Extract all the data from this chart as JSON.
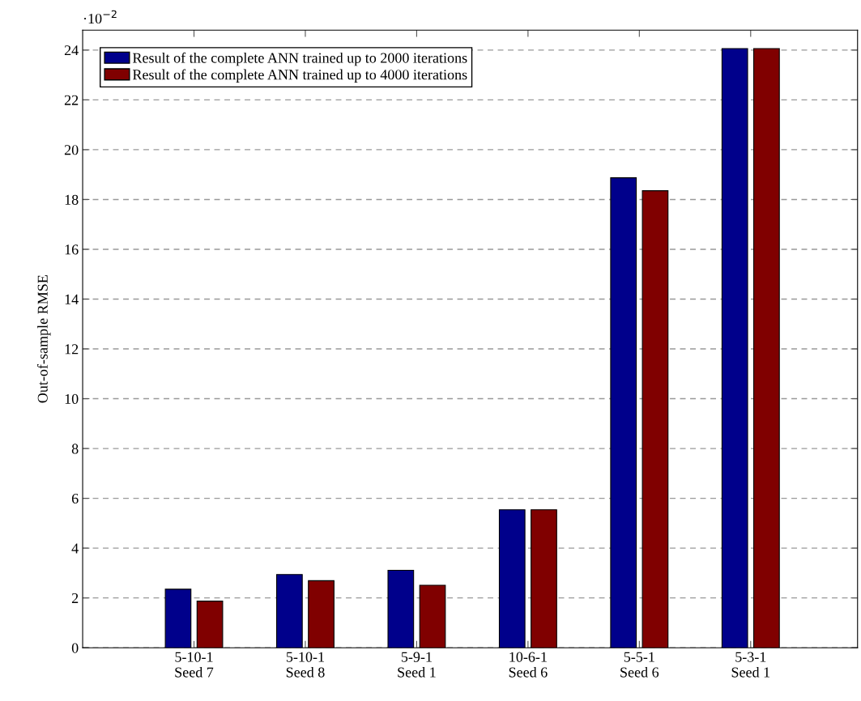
{
  "chart_data": {
    "type": "bar",
    "categories": [
      "5-10-1\nSeed 7",
      "5-10-1\nSeed 8",
      "5-9-1\nSeed 1",
      "10-6-1\nSeed 6",
      "5-5-1\nSeed 6",
      "5-3-1\nSeed 1"
    ],
    "series": [
      {
        "name": "Result of the complete ANN trained up to 2000 iterations",
        "color": "#00008b",
        "values": [
          2.35,
          2.94,
          3.11,
          5.54,
          18.87,
          24.06
        ]
      },
      {
        "name": "Result of the complete ANN trained up to 4000 iterations",
        "color": "#800000",
        "values": [
          1.87,
          2.69,
          2.51,
          5.54,
          18.35,
          24.06
        ]
      }
    ],
    "ylabel": "Out-of-sample RMSE",
    "annotations": [
      "·10$^{−2}$"
    ],
    "ylim": [
      0,
      24.8
    ],
    "yticks": [
      0,
      2,
      4,
      6,
      8,
      10,
      12,
      14,
      16,
      18,
      20,
      22,
      24
    ],
    "grid": "y",
    "legend": "top left"
  }
}
